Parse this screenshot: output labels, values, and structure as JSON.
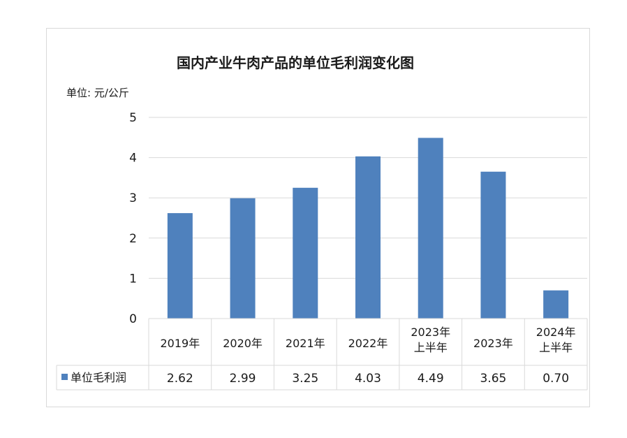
{
  "chart_data": {
    "type": "bar",
    "title": "国内产业牛肉产品的单位毛利润变化图",
    "unit_label": "单位: 元/公斤",
    "categories": [
      [
        "2019年"
      ],
      [
        "2020年"
      ],
      [
        "2021年"
      ],
      [
        "2022年"
      ],
      [
        "2023年",
        "上半年"
      ],
      [
        "2023年"
      ],
      [
        "2024年",
        "上半年"
      ]
    ],
    "series": [
      {
        "name": "单位毛利润",
        "values": [
          2.62,
          2.99,
          3.25,
          4.03,
          4.49,
          3.65,
          0.7
        ],
        "labels": [
          "2.62",
          "2.99",
          "3.25",
          "4.03",
          "4.49",
          "3.65",
          "0.70"
        ]
      }
    ],
    "ylim": [
      0,
      5
    ],
    "yticks": [
      0,
      1,
      2,
      3,
      4,
      5
    ],
    "grid": true,
    "data_table": true,
    "bar_color": "#4f81bd",
    "grid_color": "#d9d9d9"
  }
}
